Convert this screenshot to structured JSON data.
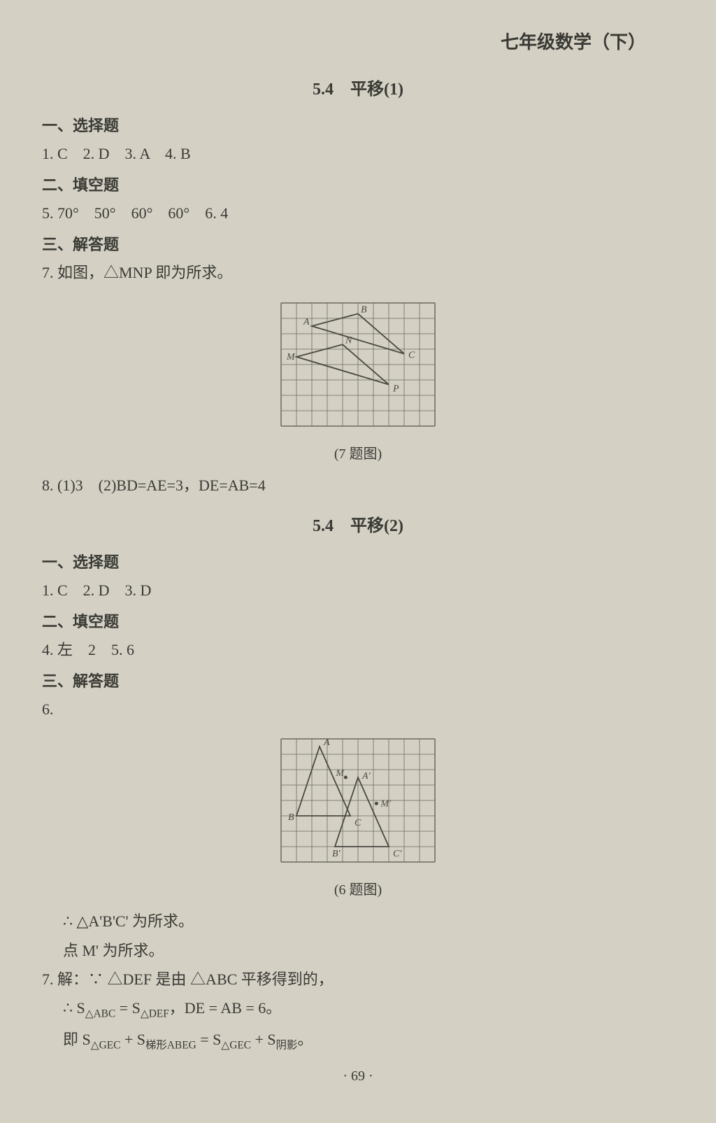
{
  "header": "七年级数学（下）",
  "sec1_title": "5.4　平移(1)",
  "sec1_h1": "一、选择题",
  "sec1_ans1": "1. C　2. D　3. A　4. B",
  "sec1_h2": "二、填空题",
  "sec1_ans2": "5. 70°　50°　60°　60°　6. 4",
  "sec1_h3": "三、解答题",
  "sec1_ans3": "7. 如图，△MNP 即为所求。",
  "fig1_caption": "(7 题图)",
  "fig1": {
    "cols": 10,
    "rows": 8,
    "cell": 22,
    "stroke": "#4a4a42",
    "grid_stroke": "#6b6b60",
    "tri1": {
      "pts": [
        [
          2,
          1.5
        ],
        [
          5,
          0.7
        ],
        [
          8,
          3.3
        ]
      ],
      "labels": [
        "A",
        "B",
        "C"
      ]
    },
    "tri2": {
      "pts": [
        [
          1,
          3.5
        ],
        [
          4,
          2.7
        ],
        [
          7,
          5.3
        ]
      ],
      "labels": [
        "M",
        "N",
        "P"
      ]
    }
  },
  "sec1_ans4": "8. (1)3　(2)BD=AE=3，DE=AB=4",
  "sec2_title": "5.4　平移(2)",
  "sec2_h1": "一、选择题",
  "sec2_ans1": "1. C　2. D　3. D",
  "sec2_h2": "二、填空题",
  "sec2_ans2": "4. 左　2　5. 6",
  "sec2_h3": "三、解答题",
  "sec2_ans3": "6.",
  "fig2_caption": "(6 题图)",
  "fig2": {
    "cols": 10,
    "rows": 8,
    "cell": 22,
    "stroke": "#4a4a42",
    "grid_stroke": "#6b6b60",
    "tri1": {
      "pts": [
        [
          2.5,
          0.5
        ],
        [
          1,
          5
        ],
        [
          4.5,
          5
        ]
      ],
      "labels": [
        "A",
        "B",
        "C"
      ]
    },
    "tri2": {
      "pts": [
        [
          5,
          2.5
        ],
        [
          3.5,
          7
        ],
        [
          7,
          7
        ]
      ],
      "labels": [
        "A'",
        "B'",
        "C'"
      ]
    },
    "M": [
      4.2,
      2.5
    ],
    "Mp": [
      6.2,
      4.2
    ]
  },
  "concl1": "∴ △A'B'C' 为所求。",
  "concl2": "点 M' 为所求。",
  "q7_l1": "7. 解：∵ △DEF 是由 △ABC 平移得到的，",
  "q7_l2_prefix": "∴ S",
  "q7_l2_sub1": "△ABC",
  "q7_l2_mid1": " = S",
  "q7_l2_sub2": "△DEF",
  "q7_l2_tail": "，DE = AB = 6。",
  "q7_l3_prefix": "即 S",
  "q7_l3_sub1": "△GEC",
  "q7_l3_mid1": " + S",
  "q7_l3_sub2": "梯形ABEG",
  "q7_l3_mid2": " = S",
  "q7_l3_sub3": "△GEC",
  "q7_l3_mid3": " + S",
  "q7_l3_sub4": "阴影",
  "q7_l3_tail": "。",
  "page_num": "· 69 ·"
}
